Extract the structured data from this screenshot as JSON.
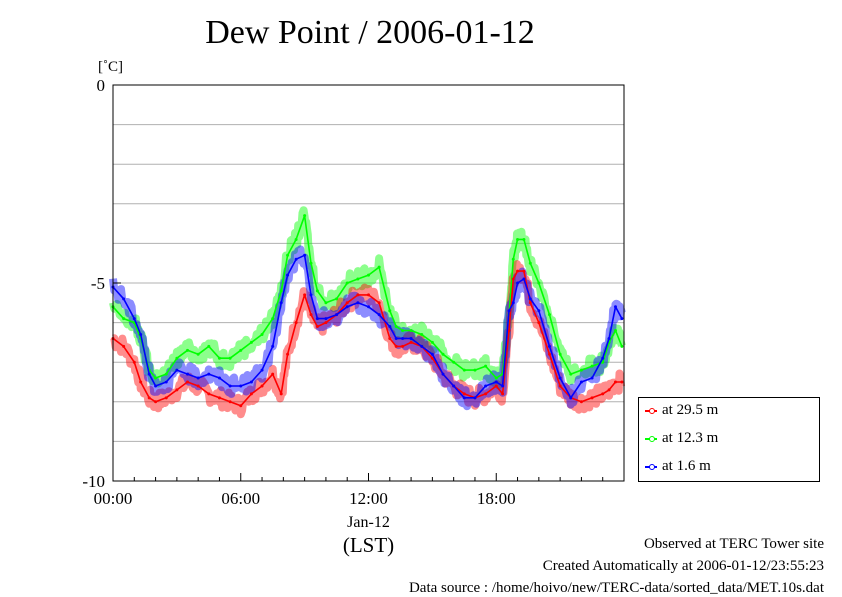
{
  "title": "Dew Point / 2006-01-12",
  "footer": {
    "site": "Observed at TERC Tower site",
    "created": "Created Automatically at 2006-01-12/23:55:23",
    "source": "Data source : /home/hoivo/new/TERC-data/sorted_data/MET.10s.dat"
  },
  "chart_data": {
    "type": "line",
    "title": "Dew Point / 2006-01-12",
    "xlabel": "(LST)",
    "xsublabel": "Jan-12",
    "ylabel": "[˚C]",
    "xlim": [
      0,
      24
    ],
    "ylim": [
      -10,
      0
    ],
    "xticks": [
      0,
      6,
      12,
      18
    ],
    "xtick_labels": [
      "00:00",
      "06:00",
      "12:00",
      "18:00"
    ],
    "yticks": [
      -10,
      -5,
      0
    ],
    "ytick_labels": [
      "-10",
      "-5",
      "0"
    ],
    "grid": true,
    "legend_position": "right-bottom",
    "series": [
      {
        "name": "at 29.5 m",
        "color": "#ff0000",
        "x": [
          0,
          0.5,
          1.0,
          1.3,
          1.7,
          2.0,
          2.5,
          3.0,
          3.5,
          4.0,
          4.5,
          5.0,
          5.5,
          6.0,
          6.5,
          7.0,
          7.5,
          7.9,
          8.2,
          8.6,
          9.0,
          9.3,
          9.6,
          10.0,
          10.5,
          11.0,
          11.5,
          12.0,
          12.5,
          13.0,
          13.3,
          13.6,
          14.0,
          14.5,
          15.0,
          15.5,
          16.0,
          16.5,
          17.0,
          17.5,
          18.0,
          18.3,
          18.6,
          18.8,
          19.0,
          19.3,
          19.6,
          20.0,
          20.5,
          21.0,
          21.5,
          22.0,
          22.5,
          23.0,
          23.3,
          23.6,
          23.9
        ],
        "values": [
          -6.4,
          -6.6,
          -7.0,
          -7.5,
          -7.9,
          -8.0,
          -7.9,
          -7.7,
          -7.5,
          -7.6,
          -7.8,
          -7.9,
          -8.0,
          -8.1,
          -7.8,
          -7.6,
          -7.3,
          -7.8,
          -6.8,
          -6.0,
          -5.3,
          -5.8,
          -6.1,
          -6.0,
          -5.8,
          -5.5,
          -5.3,
          -5.3,
          -5.5,
          -6.4,
          -6.6,
          -6.6,
          -6.5,
          -6.6,
          -6.9,
          -7.3,
          -7.6,
          -7.8,
          -7.9,
          -7.8,
          -7.6,
          -7.8,
          -6.2,
          -4.9,
          -4.7,
          -4.7,
          -5.5,
          -6.0,
          -6.8,
          -7.6,
          -7.9,
          -8.0,
          -7.9,
          -7.8,
          -7.7,
          -7.5,
          -7.5
        ]
      },
      {
        "name": "at 12.3 m",
        "color": "#00ff00",
        "x": [
          0,
          0.5,
          1.0,
          1.3,
          1.7,
          2.0,
          2.5,
          3.0,
          3.5,
          4.0,
          4.5,
          5.0,
          5.5,
          6.0,
          6.5,
          7.0,
          7.5,
          7.9,
          8.2,
          8.6,
          9.0,
          9.3,
          9.6,
          10.0,
          10.5,
          11.0,
          11.5,
          12.0,
          12.5,
          13.0,
          13.3,
          13.6,
          14.0,
          14.5,
          15.0,
          15.5,
          16.0,
          16.5,
          17.0,
          17.5,
          18.0,
          18.3,
          18.6,
          18.8,
          19.0,
          19.3,
          19.6,
          20.0,
          20.5,
          21.0,
          21.5,
          22.0,
          22.5,
          23.0,
          23.3,
          23.6,
          23.9
        ],
        "values": [
          -5.6,
          -5.9,
          -6.0,
          -6.4,
          -7.2,
          -7.4,
          -7.3,
          -6.9,
          -6.7,
          -6.8,
          -6.6,
          -6.9,
          -6.9,
          -6.7,
          -6.5,
          -6.3,
          -5.9,
          -5.2,
          -4.3,
          -3.9,
          -3.3,
          -4.5,
          -5.2,
          -5.5,
          -5.4,
          -5.0,
          -4.9,
          -4.8,
          -4.6,
          -5.7,
          -6.1,
          -6.2,
          -6.2,
          -6.3,
          -6.5,
          -6.8,
          -7.0,
          -7.2,
          -7.2,
          -7.1,
          -7.4,
          -7.3,
          -5.8,
          -4.4,
          -3.9,
          -3.9,
          -4.5,
          -5.0,
          -5.8,
          -6.8,
          -7.3,
          -7.2,
          -7.1,
          -7.0,
          -6.5,
          -6.2,
          -6.6
        ]
      },
      {
        "name": "at 1.6 m",
        "color": "#0000ff",
        "x": [
          0,
          0.5,
          1.0,
          1.3,
          1.7,
          2.0,
          2.5,
          3.0,
          3.5,
          4.0,
          4.5,
          5.0,
          5.5,
          6.0,
          6.5,
          7.0,
          7.5,
          7.9,
          8.2,
          8.6,
          9.0,
          9.3,
          9.6,
          10.0,
          10.5,
          11.0,
          11.5,
          12.0,
          12.5,
          13.0,
          13.3,
          13.6,
          14.0,
          14.5,
          15.0,
          15.5,
          16.0,
          16.5,
          17.0,
          17.5,
          18.0,
          18.3,
          18.6,
          18.8,
          19.0,
          19.3,
          19.6,
          20.0,
          20.5,
          21.0,
          21.5,
          22.0,
          22.5,
          23.0,
          23.3,
          23.6,
          23.9
        ],
        "values": [
          -5.1,
          -5.4,
          -5.9,
          -6.3,
          -7.3,
          -7.6,
          -7.5,
          -7.2,
          -7.3,
          -7.4,
          -7.3,
          -7.4,
          -7.6,
          -7.6,
          -7.5,
          -7.2,
          -6.6,
          -5.5,
          -4.8,
          -4.4,
          -4.3,
          -5.3,
          -5.9,
          -5.9,
          -5.8,
          -5.6,
          -5.5,
          -5.6,
          -5.8,
          -6.1,
          -6.4,
          -6.4,
          -6.4,
          -6.6,
          -6.8,
          -7.3,
          -7.6,
          -7.9,
          -7.9,
          -7.6,
          -7.5,
          -7.6,
          -5.7,
          -5.5,
          -5.0,
          -4.9,
          -5.4,
          -5.7,
          -6.6,
          -7.4,
          -7.9,
          -7.5,
          -7.4,
          -6.9,
          -6.4,
          -5.6,
          -5.9
        ]
      }
    ]
  }
}
